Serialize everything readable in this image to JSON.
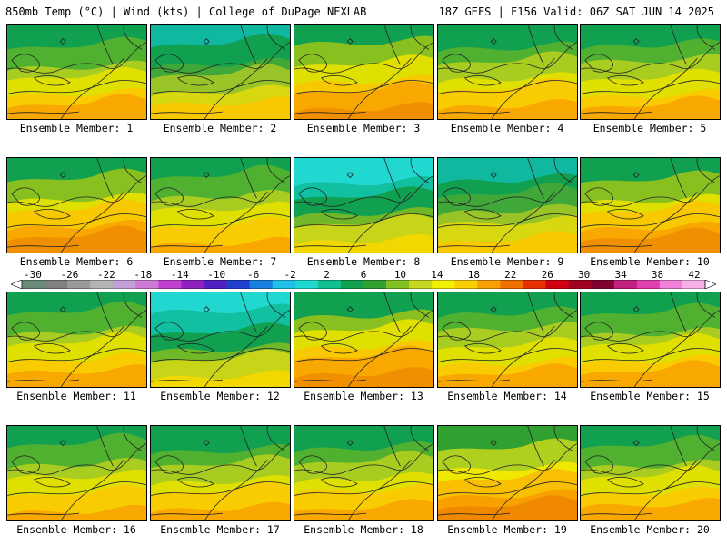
{
  "header": {
    "left": "850mb Temp (°C) | Wind (kts) | College of DuPage NEXLAB",
    "right": "18Z GEFS | F156 Valid: 06Z SAT JUN 14 2025"
  },
  "members": [
    {
      "label": "Ensemble Member: 1",
      "style": "neutral"
    },
    {
      "label": "Ensemble Member: 2",
      "style": "cool"
    },
    {
      "label": "Ensemble Member: 3",
      "style": "warm"
    },
    {
      "label": "Ensemble Member: 4",
      "style": "neutral"
    },
    {
      "label": "Ensemble Member: 5",
      "style": "neutral"
    },
    {
      "label": "Ensemble Member: 6",
      "style": "warm"
    },
    {
      "label": "Ensemble Member: 7",
      "style": "neutral"
    },
    {
      "label": "Ensemble Member: 8",
      "style": "cold"
    },
    {
      "label": "Ensemble Member: 9",
      "style": "cool"
    },
    {
      "label": "Ensemble Member: 10",
      "style": "warm"
    },
    {
      "label": "Ensemble Member: 11",
      "style": "neutral"
    },
    {
      "label": "Ensemble Member: 12",
      "style": "cold"
    },
    {
      "label": "Ensemble Member: 13",
      "style": "warm"
    },
    {
      "label": "Ensemble Member: 14",
      "style": "neutral"
    },
    {
      "label": "Ensemble Member: 15",
      "style": "neutral"
    },
    {
      "label": "Ensemble Member: 16",
      "style": "neutral"
    },
    {
      "label": "Ensemble Member: 17",
      "style": "neutral"
    },
    {
      "label": "Ensemble Member: 18",
      "style": "neutral"
    },
    {
      "label": "Ensemble Member: 19",
      "style": "hot"
    },
    {
      "label": "Ensemble Member: 20",
      "style": "neutral"
    }
  ],
  "colorbar": {
    "tick_labels": [
      "-30",
      "-26",
      "-22",
      "-18",
      "-14",
      "-10",
      "-6",
      "-2",
      "2",
      "6",
      "10",
      "14",
      "18",
      "22",
      "26",
      "30",
      "34",
      "38",
      "42"
    ],
    "colors": [
      "#6b8a7a",
      "#808080",
      "#9a9a9a",
      "#b4b4b4",
      "#c4a0d8",
      "#d07ad8",
      "#c040d0",
      "#9020c0",
      "#5020c0",
      "#2040d0",
      "#1880e0",
      "#20c0e8",
      "#20d8d0",
      "#10c090",
      "#10a050",
      "#30a030",
      "#80c020",
      "#c8d820",
      "#f0f000",
      "#f8d000",
      "#f8a000",
      "#f07000",
      "#e83000",
      "#d00010",
      "#a00020",
      "#800030",
      "#c02080",
      "#e040b0",
      "#f080d8",
      "#f8b0e8"
    ],
    "units": "°C"
  }
}
